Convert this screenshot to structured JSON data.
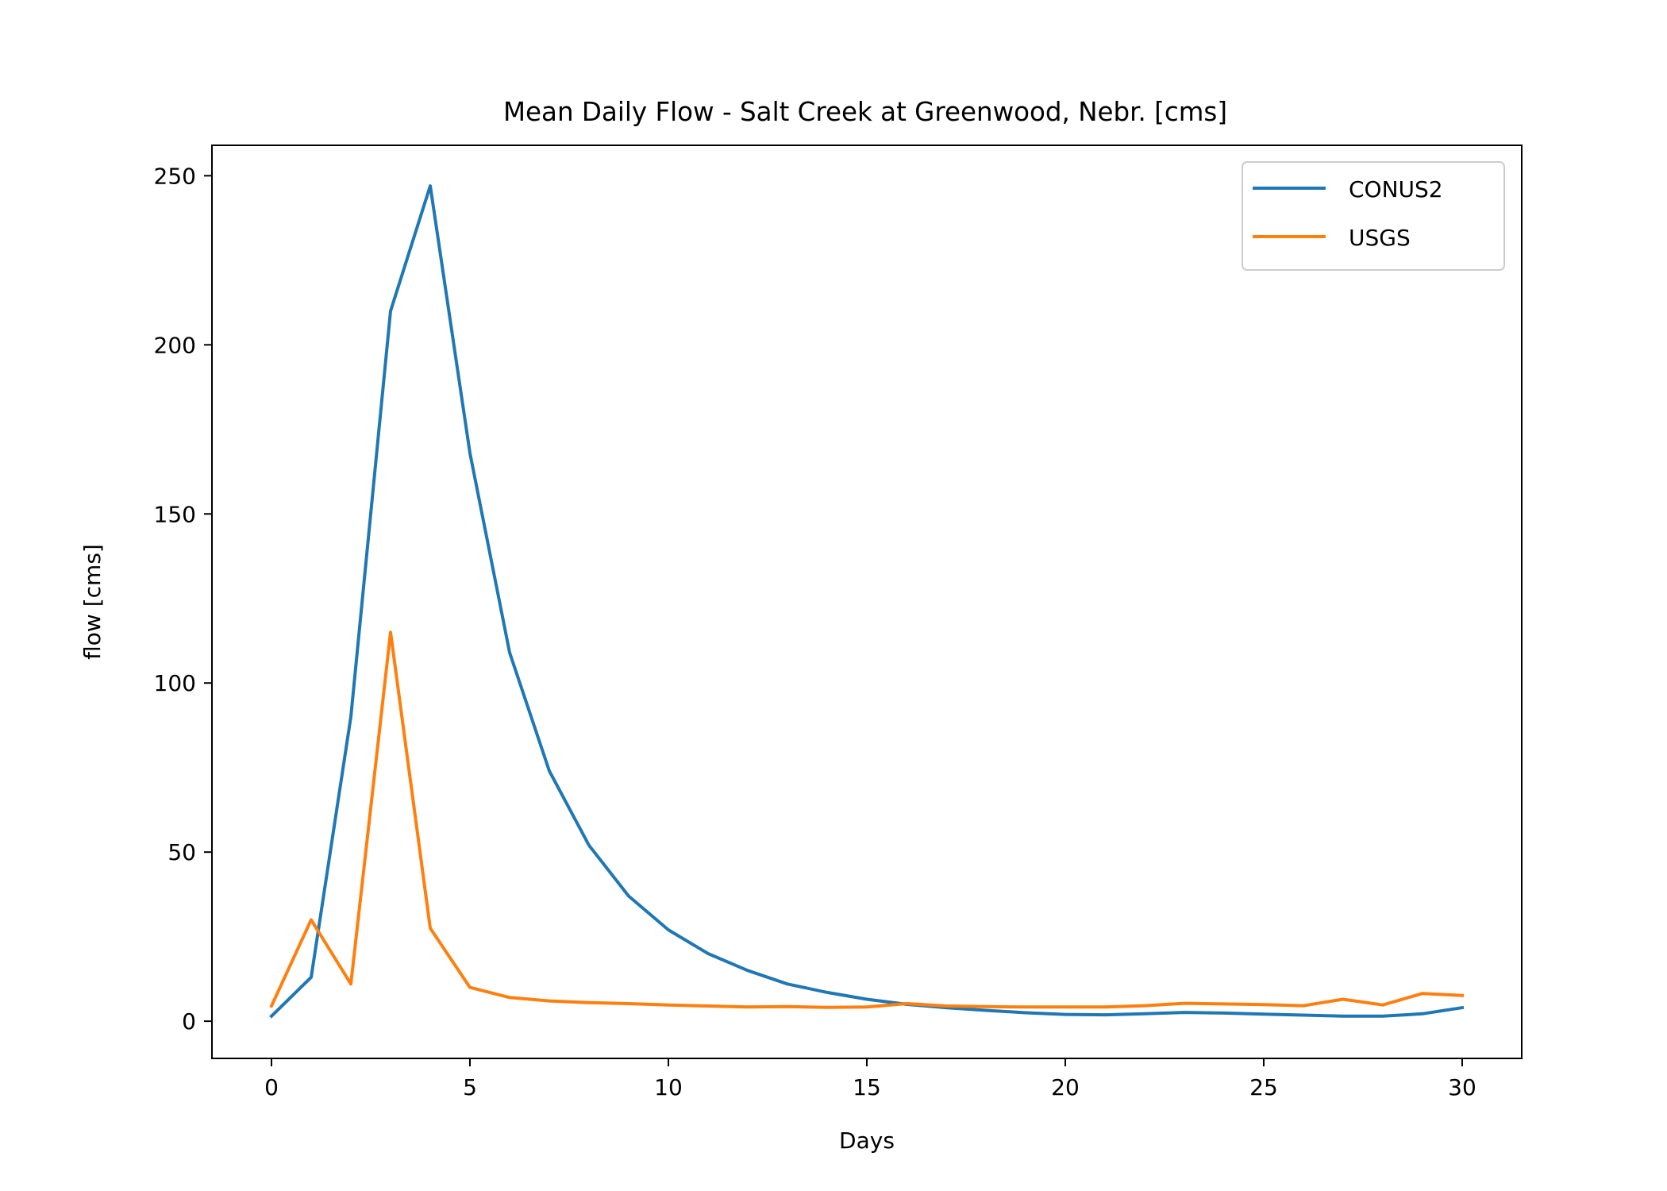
{
  "chart_data": {
    "type": "line",
    "title": "Mean Daily Flow - Salt Creek at Greenwood, Nebr. [cms]",
    "xlabel": "Days",
    "ylabel": "flow [cms]",
    "xlim": [
      -1.5,
      31.5
    ],
    "ylim": [
      -11,
      259
    ],
    "xticks": [
      0,
      5,
      10,
      15,
      20,
      25,
      30
    ],
    "yticks": [
      0,
      50,
      100,
      150,
      200,
      250
    ],
    "grid": false,
    "legend_position": "top-right",
    "x": [
      0,
      1,
      2,
      3,
      4,
      5,
      6,
      7,
      8,
      9,
      10,
      11,
      12,
      13,
      14,
      15,
      16,
      17,
      18,
      19,
      20,
      21,
      22,
      23,
      24,
      25,
      26,
      27,
      28,
      29,
      30
    ],
    "series": [
      {
        "name": "CONUS2",
        "color": "#1f77b4",
        "values": [
          1.5,
          13,
          90,
          210,
          247,
          168,
          109,
          74,
          52,
          37,
          27,
          20,
          15,
          11,
          8.5,
          6.5,
          5,
          4,
          3.2,
          2.5,
          2,
          1.9,
          2.2,
          2.6,
          2.4,
          2.1,
          1.8,
          1.5,
          1.5,
          2.2,
          4
        ]
      },
      {
        "name": "USGS",
        "color": "#ff7f0e",
        "values": [
          4.5,
          30,
          11,
          115,
          27.5,
          10,
          7,
          6,
          5.5,
          5.2,
          4.8,
          4.5,
          4.2,
          4.3,
          4.1,
          4.2,
          5.2,
          4.5,
          4.3,
          4.2,
          4.2,
          4.2,
          4.6,
          5.3,
          5.1,
          4.9,
          4.6,
          6.5,
          4.8,
          8.2,
          7.6
        ]
      }
    ]
  }
}
